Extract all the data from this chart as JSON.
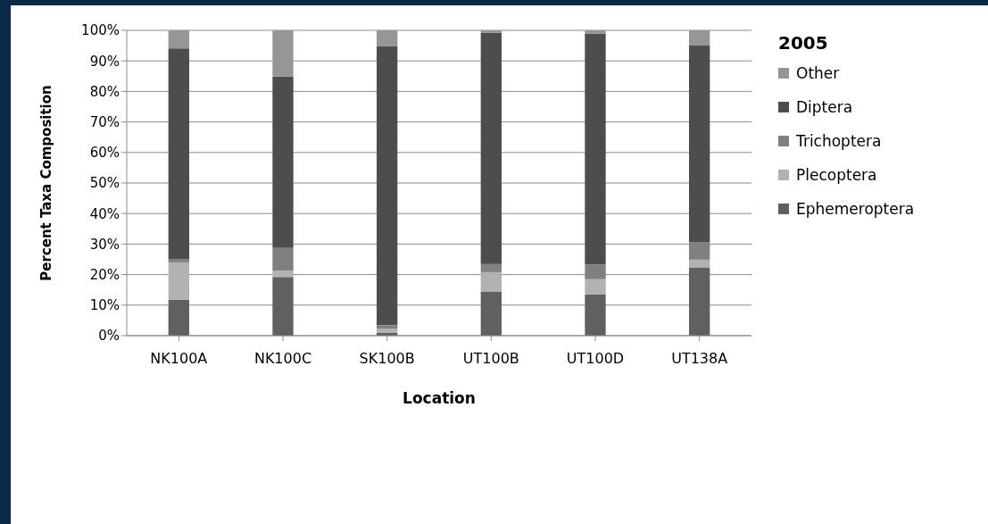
{
  "chart_data": {
    "type": "bar",
    "stacked": true,
    "xlabel": "Location",
    "ylabel": "Percent Taxa Composition",
    "legend_title": "2005",
    "legend": "right",
    "grid": "y",
    "categories": [
      "NK100A",
      "NK100C",
      "SK100B",
      "UT100B",
      "UT100D",
      "UT138A"
    ],
    "ylim": [
      0,
      100
    ],
    "yticks": [
      {
        "value": 0,
        "label": "0%"
      },
      {
        "value": 10,
        "label": "10%"
      },
      {
        "value": 20,
        "label": "20%"
      },
      {
        "value": 30,
        "label": "30%"
      },
      {
        "value": 40,
        "label": "40%"
      },
      {
        "value": 50,
        "label": "50%"
      },
      {
        "value": 60,
        "label": "60%"
      },
      {
        "value": 70,
        "label": "70%"
      },
      {
        "value": 80,
        "label": "80%"
      },
      {
        "value": 90,
        "label": "90%"
      },
      {
        "value": 100,
        "label": "100%"
      }
    ],
    "series": [
      {
        "name": "Ephemeroptera",
        "color": "#606060",
        "values": [
          11.8,
          19.2,
          1.0,
          14.5,
          13.5,
          22.4
        ]
      },
      {
        "name": "Plecoptera",
        "color": "#b2b2b2",
        "values": [
          12.2,
          2.1,
          1.3,
          6.3,
          5.0,
          2.5
        ]
      },
      {
        "name": "Trichoptera",
        "color": "#808080",
        "values": [
          1.1,
          7.4,
          1.1,
          2.7,
          4.8,
          5.8
        ]
      },
      {
        "name": "Diptera",
        "color": "#4d4d4d",
        "values": [
          69.0,
          56.2,
          91.5,
          75.8,
          75.7,
          64.3
        ]
      },
      {
        "name": "Other",
        "color": "#969696",
        "values": [
          5.9,
          15.1,
          5.1,
          0.7,
          1.0,
          5.0
        ]
      }
    ]
  }
}
